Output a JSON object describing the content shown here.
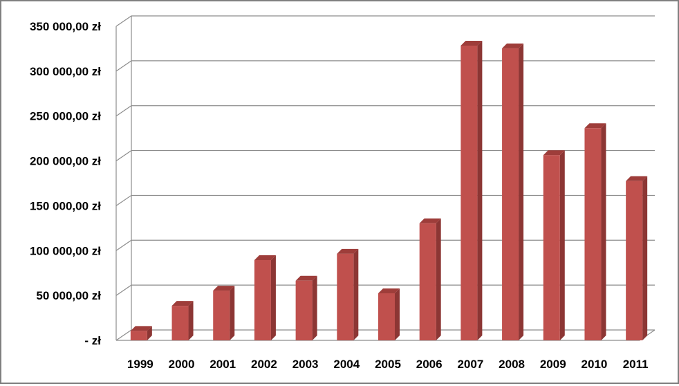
{
  "chart_data": {
    "type": "bar",
    "title": "",
    "xlabel": "",
    "ylabel": "",
    "categories": [
      "1999",
      "2000",
      "2001",
      "2002",
      "2003",
      "2004",
      "2005",
      "2006",
      "2007",
      "2008",
      "2009",
      "2010",
      "2011"
    ],
    "values": [
      12000,
      40000,
      57000,
      91000,
      68000,
      98000,
      54000,
      132000,
      330000,
      327000,
      208000,
      238000,
      179000
    ],
    "ylim": [
      0,
      350000
    ],
    "yticks": [
      0,
      50000,
      100000,
      150000,
      200000,
      250000,
      300000,
      350000
    ],
    "ytick_labels": [
      "-   zł",
      "50 000,00 zł",
      "100 000,00 zł",
      "150 000,00 zł",
      "200 000,00 zł",
      "250 000,00 zł",
      "300 000,00 zł",
      "350 000,00 zł"
    ],
    "grid": true,
    "style": "3d-column",
    "colors": {
      "bar_front": "#c0504d",
      "bar_side": "#8c3634",
      "bar_top": "#9e3d3a",
      "grid": "#8c8c8c"
    }
  }
}
